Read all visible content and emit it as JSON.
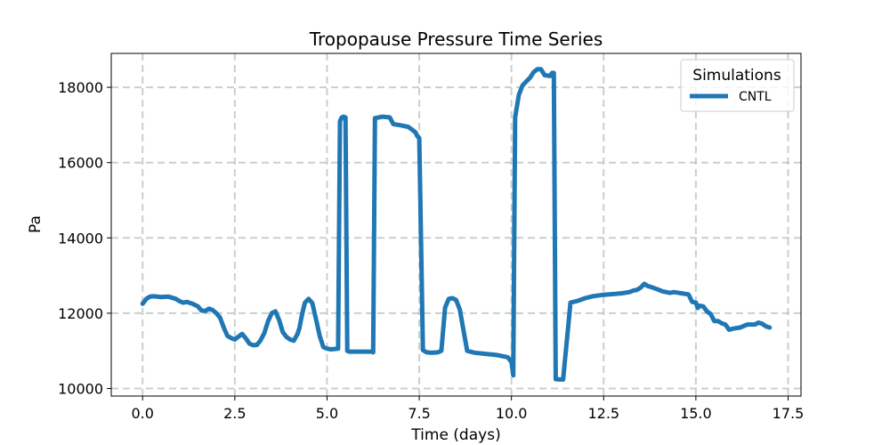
{
  "chart_data": {
    "type": "line",
    "title": "Tropopause Pressure Time Series",
    "xlabel": "Time (days)",
    "ylabel": "Pa",
    "xlim": [
      -0.85,
      17.85
    ],
    "ylim": [
      9800,
      18900
    ],
    "xticks": [
      0.0,
      2.5,
      5.0,
      7.5,
      10.0,
      12.5,
      15.0,
      17.5
    ],
    "xtick_labels": [
      "0.0",
      "2.5",
      "5.0",
      "7.5",
      "10.0",
      "12.5",
      "15.0",
      "17.5"
    ],
    "yticks": [
      10000,
      12000,
      14000,
      16000,
      18000
    ],
    "ytick_labels": [
      "10000",
      "12000",
      "14000",
      "16000",
      "18000"
    ],
    "grid": true,
    "legend": {
      "title": "Simulations",
      "location": "top-right"
    },
    "series": [
      {
        "name": "CNTL",
        "color": "#1f77b4",
        "x": [
          0.0,
          0.1,
          0.2,
          0.3,
          0.5,
          0.7,
          0.9,
          1.0,
          1.1,
          1.2,
          1.35,
          1.5,
          1.6,
          1.7,
          1.8,
          1.9,
          2.0,
          2.1,
          2.2,
          2.3,
          2.4,
          2.5,
          2.6,
          2.7,
          2.8,
          2.9,
          3.0,
          3.1,
          3.15,
          3.2,
          3.25,
          3.3,
          3.4,
          3.5,
          3.6,
          3.7,
          3.8,
          3.9,
          4.0,
          4.1,
          4.2,
          4.25,
          4.3,
          4.35,
          4.4,
          4.5,
          4.6,
          4.7,
          4.8,
          4.9,
          5.0,
          5.1,
          5.2,
          5.3,
          5.35,
          5.4,
          5.45,
          5.5,
          5.55,
          5.6,
          5.8,
          6.0,
          6.2,
          6.25,
          6.3,
          6.5,
          6.7,
          6.8,
          7.0,
          7.2,
          7.3,
          7.4,
          7.45,
          7.5,
          7.6,
          7.7,
          7.8,
          7.9,
          8.0,
          8.1,
          8.2,
          8.3,
          8.4,
          8.5,
          8.6,
          8.8,
          9.0,
          9.3,
          9.6,
          9.7,
          9.8,
          9.9,
          10.0,
          10.05,
          10.1,
          10.2,
          10.3,
          10.4,
          10.5,
          10.6,
          10.7,
          10.8,
          10.9,
          11.0,
          11.05,
          11.1,
          11.15,
          11.2,
          11.3,
          11.4,
          11.6,
          11.8,
          12.0,
          12.2,
          12.5,
          12.8,
          13.0,
          13.2,
          13.3,
          13.4,
          13.5,
          13.6,
          13.7,
          13.8,
          14.0,
          14.1,
          14.3,
          14.4,
          14.6,
          14.8,
          14.9,
          15.0,
          15.05,
          15.1,
          15.2,
          15.3,
          15.4,
          15.5,
          15.6,
          15.7,
          15.8,
          15.9,
          16.0,
          16.2,
          16.4,
          16.6,
          16.7,
          16.8,
          16.9,
          17.0
        ],
        "y": [
          12250,
          12380,
          12440,
          12450,
          12430,
          12440,
          12380,
          12320,
          12280,
          12300,
          12250,
          12180,
          12070,
          12060,
          12120,
          12080,
          12000,
          11880,
          11620,
          11400,
          11340,
          11300,
          11380,
          11450,
          11330,
          11190,
          11150,
          11160,
          11220,
          11280,
          11380,
          11470,
          11780,
          12000,
          12050,
          11820,
          11500,
          11370,
          11300,
          11270,
          11450,
          11600,
          11850,
          12080,
          12280,
          12380,
          12270,
          11850,
          11400,
          11100,
          11060,
          11040,
          11050,
          11060,
          17100,
          17200,
          17220,
          17200,
          11000,
          10980,
          10980,
          10980,
          10980,
          10960,
          17180,
          17220,
          17200,
          17020,
          16990,
          16950,
          16880,
          16800,
          16700,
          16650,
          11020,
          10960,
          10950,
          10950,
          10960,
          11000,
          12150,
          12380,
          12400,
          12350,
          12100,
          11000,
          10950,
          10920,
          10890,
          10870,
          10850,
          10830,
          10700,
          10350,
          17200,
          17800,
          18050,
          18150,
          18250,
          18400,
          18480,
          18480,
          18320,
          18310,
          18300,
          18380,
          18380,
          10250,
          10240,
          10240,
          12280,
          12330,
          12400,
          12450,
          12490,
          12510,
          12530,
          12560,
          12600,
          12620,
          12680,
          12780,
          12720,
          12690,
          12620,
          12580,
          12540,
          12560,
          12530,
          12500,
          12300,
          12280,
          12140,
          12200,
          12180,
          12050,
          11980,
          11790,
          11790,
          11730,
          11700,
          11560,
          11590,
          11620,
          11700,
          11700,
          11750,
          11720,
          11650,
          11620
        ]
      }
    ]
  }
}
